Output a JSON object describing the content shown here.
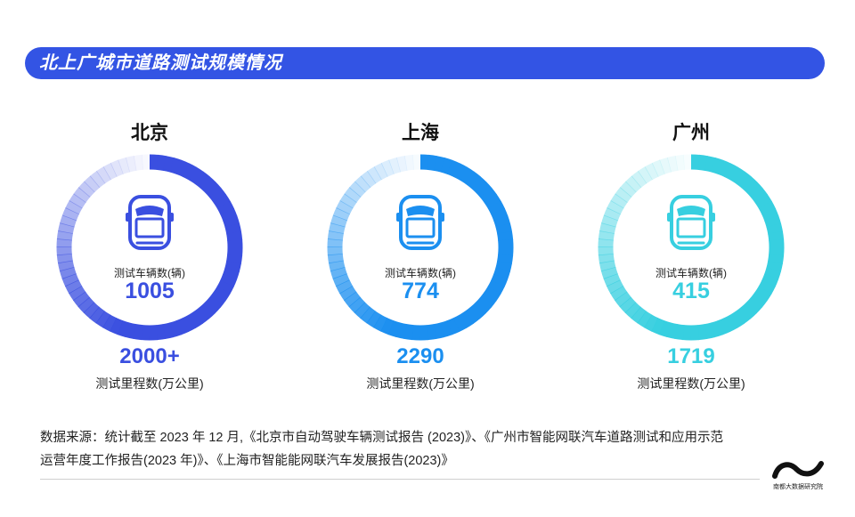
{
  "title": "北上广城市道路测试规模情况",
  "chart_data": [
    {
      "type": "pie",
      "city": "北京",
      "vehicle_label": "测试车辆数(辆)",
      "vehicles": 1005,
      "vehicles_text": "1005",
      "mileage_label": "测试里程数(万公里)",
      "mileage": 2000,
      "mileage_text": "2000+",
      "color": "#3a4fe0"
    },
    {
      "type": "pie",
      "city": "上海",
      "vehicle_label": "测试车辆数(辆)",
      "vehicles": 774,
      "vehicles_text": "774",
      "mileage_label": "测试里程数(万公里)",
      "mileage": 2290,
      "mileage_text": "2290",
      "color": "#1b8ff0"
    },
    {
      "type": "pie",
      "city": "广州",
      "vehicle_label": "测试车辆数(辆)",
      "vehicles": 415,
      "vehicles_text": "415",
      "mileage_label": "测试里程数(万公里)",
      "mileage": 1719,
      "mileage_text": "1719",
      "color": "#37cfe0"
    }
  ],
  "source": {
    "line1": "数据来源：统计截至 2023 年 12 月,《北京市自动驾驶车辆测试报告 (2023)》、《广州市智能网联汽车道路测试和应用示范",
    "line2": "运营年度工作报告(2023 年)》、《上海市智能能网联汽车发展报告(2023)》"
  },
  "brand": {
    "name": "南都大数据研究院"
  }
}
